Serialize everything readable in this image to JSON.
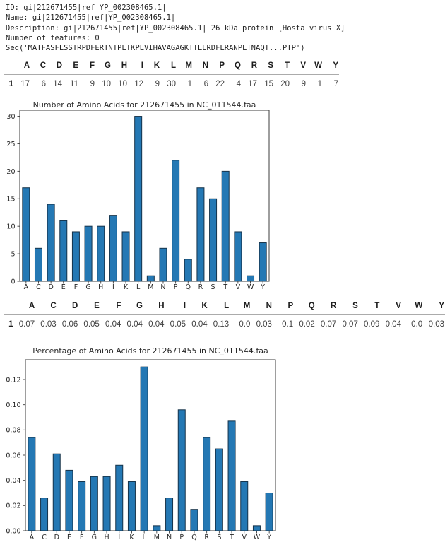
{
  "seq_info": {
    "lines": [
      "ID: gi|212671455|ref|YP_002308465.1|",
      "Name: gi|212671455|ref|YP_002308465.1|",
      "Description: gi|212671455|ref|YP_002308465.1| 26 kDa protein [Hosta virus X]",
      "Number of features: 0",
      "Seq('MATFASFLSSTRPDFERTNTPLTKPLVIHAVAGAGKTTLLRDFLRANPLTNAQT...PTP')"
    ]
  },
  "count_table": {
    "index_label": "1",
    "columns": [
      "A",
      "C",
      "D",
      "E",
      "F",
      "G",
      "H",
      "I",
      "K",
      "L",
      "M",
      "N",
      "P",
      "Q",
      "R",
      "S",
      "T",
      "V",
      "W",
      "Y"
    ],
    "values": [
      "17",
      "6",
      "14",
      "11",
      "9",
      "10",
      "10",
      "12",
      "9",
      "30",
      "1",
      "6",
      "22",
      "4",
      "17",
      "15",
      "20",
      "9",
      "1",
      "7"
    ]
  },
  "percent_table": {
    "index_label": "1",
    "columns": [
      "A",
      "C",
      "D",
      "E",
      "F",
      "G",
      "H",
      "I",
      "K",
      "L",
      "M",
      "N",
      "P",
      "Q",
      "R",
      "S",
      "T",
      "V",
      "W",
      "Y"
    ],
    "values": [
      "0.07",
      "0.03",
      "0.06",
      "0.05",
      "0.04",
      "0.04",
      "0.04",
      "0.05",
      "0.04",
      "0.13",
      "0.0",
      "0.03",
      "0.1",
      "0.02",
      "0.07",
      "0.07",
      "0.09",
      "0.04",
      "0.0",
      "0.03"
    ]
  },
  "chart_data": [
    {
      "type": "bar",
      "title": "Number of Amino Acids for 212671455 in NC_011544.faa",
      "categories": [
        "A",
        "C",
        "D",
        "E",
        "F",
        "G",
        "H",
        "I",
        "K",
        "L",
        "M",
        "N",
        "P",
        "Q",
        "R",
        "S",
        "T",
        "V",
        "W",
        "Y"
      ],
      "values": [
        17,
        6,
        14,
        11,
        9,
        10,
        10,
        12,
        9,
        30,
        1,
        6,
        22,
        4,
        17,
        15,
        20,
        9,
        1,
        7
      ],
      "xlabel": "",
      "ylabel": "",
      "ylim": [
        0,
        31.1
      ],
      "yticks": [
        0,
        5,
        10,
        15,
        20,
        25,
        30
      ],
      "ytick_labels": [
        "0",
        "5",
        "10",
        "15",
        "20",
        "25",
        "30"
      ],
      "grid": false,
      "legend": "none"
    },
    {
      "type": "bar",
      "title": "Percentage of Amino Acids for 212671455 in NC_011544.faa",
      "categories": [
        "A",
        "C",
        "D",
        "E",
        "F",
        "G",
        "H",
        "I",
        "K",
        "L",
        "M",
        "N",
        "P",
        "Q",
        "R",
        "S",
        "T",
        "V",
        "W",
        "Y"
      ],
      "values": [
        0.074,
        0.026,
        0.061,
        0.048,
        0.039,
        0.043,
        0.043,
        0.052,
        0.039,
        0.13,
        0.004,
        0.026,
        0.096,
        0.017,
        0.074,
        0.065,
        0.087,
        0.039,
        0.004,
        0.03
      ],
      "xlabel": "",
      "ylabel": "",
      "ylim": [
        0,
        0.1357
      ],
      "yticks": [
        0,
        0.02,
        0.04,
        0.06,
        0.08,
        0.1,
        0.12
      ],
      "ytick_labels": [
        "0.00",
        "0.02",
        "0.04",
        "0.06",
        "0.08",
        "0.10",
        "0.12"
      ],
      "grid": false,
      "legend": "none"
    }
  ],
  "colors": {
    "bar_fill": "#2478b4",
    "bar_edge": "#16334a",
    "axis": "#3c3c3c",
    "tick_text": "#262626",
    "title_text": "#262626"
  }
}
